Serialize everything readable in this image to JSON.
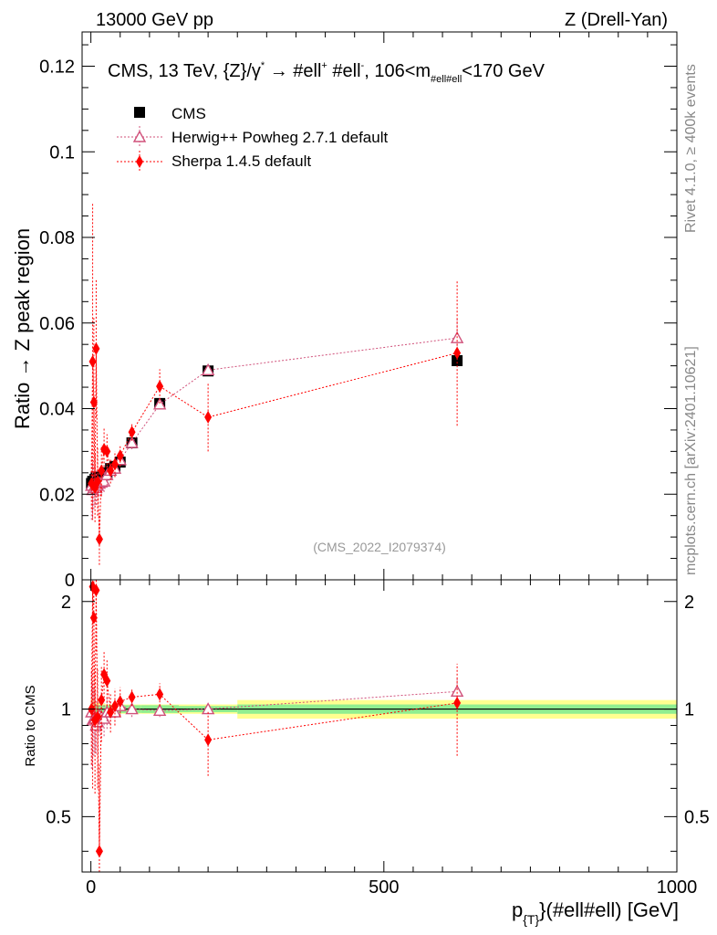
{
  "header": {
    "energy_label": "13000 GeV pp",
    "process_label": "Z (Drell-Yan)"
  },
  "side_labels": {
    "rivet": "Rivet 4.1.0, ≥ 400k events",
    "mcplots": "mcplots.cern.ch [arXiv:2401.10621]"
  },
  "main_panel": {
    "title": "CMS, 13 TeV, {Z}/γ* → #ell⁺ #ell⁻, 106<m#ell#ell<170 GeV",
    "title_parts": {
      "pre": "CMS, 13 TeV, {Z}/γ",
      "star": "*",
      "arrow": " →  #ell",
      "plus": "+",
      "mid": " #ell",
      "minus": "-",
      "post1": ", 106<m",
      "sub": "#ell#ell",
      "post2": "<170 GeV"
    },
    "ylabel": "Ratio → Z peak region",
    "watermark": "(CMS_2022_I2079374)"
  },
  "ratio_panel": {
    "ylabel": "Ratio to CMS"
  },
  "xaxis": {
    "label_main": "p",
    "label_sub": "{T}",
    "label_rest": "}(#ell#ell) [GeV]"
  },
  "colors": {
    "data": "#000000",
    "herwig": "#d0507a",
    "sherpa": "#ff0000",
    "band_inner": "#90ee90",
    "band_outer": "#ffff90",
    "side_text": "#888888"
  },
  "chart_data": {
    "type": "scatter",
    "xlim": [
      -15,
      1000
    ],
    "main_ylim": [
      0,
      0.128
    ],
    "ratio_ylim": [
      0.35,
      2.3
    ],
    "xticks": [
      0,
      500,
      1000
    ],
    "main_yticks": [
      0,
      0.02,
      0.04,
      0.06,
      0.08,
      0.1,
      0.12
    ],
    "main_ytick_labels": [
      "0",
      "0.02",
      "0.04",
      "0.06",
      "0.08",
      "0.1",
      "0.12"
    ],
    "ratio_yticks": [
      0.5,
      1,
      2
    ],
    "ratio_ytick_labels": [
      "0.5",
      "1",
      "2"
    ],
    "legend": [
      "CMS",
      "Herwig++ Powheg 2.7.1 default",
      "Sherpa 1.4.5 default"
    ],
    "band_edges": [
      0,
      2,
      4,
      6,
      8,
      10,
      13,
      16,
      20,
      25,
      30,
      37,
      45,
      55,
      85,
      150,
      250,
      1000
    ],
    "band_inner_half": [
      0.025,
      0.025,
      0.025,
      0.025,
      0.025,
      0.025,
      0.025,
      0.025,
      0.025,
      0.025,
      0.025,
      0.025,
      0.025,
      0.025,
      0.025,
      0.02,
      0.03
    ],
    "band_outer_half": [
      0.08,
      0.06,
      0.05,
      0.05,
      0.04,
      0.04,
      0.04,
      0.035,
      0.035,
      0.03,
      0.03,
      0.03,
      0.03,
      0.03,
      0.03,
      0.03,
      0.06
    ],
    "series": [
      {
        "name": "CMS",
        "marker": "square",
        "x": [
          1,
          3,
          5,
          7,
          9,
          11.5,
          14.5,
          18,
          22.5,
          27.5,
          33.5,
          41,
          50,
          70,
          117.5,
          200,
          625
        ],
        "y": [
          0.0225,
          0.023,
          0.023,
          0.0235,
          0.024,
          0.024,
          0.0235,
          0.024,
          0.0245,
          0.025,
          0.026,
          0.0265,
          0.0275,
          0.032,
          0.0412,
          0.0488,
          0.0512
        ],
        "yerr": [
          0.0008,
          0.0008,
          0.0008,
          0.0008,
          0.0008,
          0.0008,
          0.0008,
          0.0008,
          0.0008,
          0.0008,
          0.0008,
          0.0008,
          0.0008,
          0.0008,
          0.0008,
          0.0008,
          0.0012
        ]
      },
      {
        "name": "Herwig++ Powheg 2.7.1 default",
        "marker": "open-triangle",
        "x": [
          1,
          3,
          5,
          7,
          9,
          11.5,
          14.5,
          18,
          22.5,
          27.5,
          33.5,
          41,
          50,
          70,
          117.5,
          200,
          625
        ],
        "y": [
          0.022,
          0.021,
          0.0215,
          0.022,
          0.0215,
          0.022,
          0.0225,
          0.0228,
          0.023,
          0.0245,
          0.0255,
          0.026,
          0.028,
          0.032,
          0.041,
          0.049,
          0.0565
        ],
        "yerr": [
          0.008,
          0.0065,
          0.005,
          0.0045,
          0.004,
          0.0035,
          0.003,
          0.003,
          0.0025,
          0.0025,
          0.0022,
          0.002,
          0.0015,
          0.0015,
          0.0012,
          0.001,
          0.0045
        ],
        "ratio": [
          0.98,
          0.93,
          0.94,
          0.94,
          0.9,
          0.92,
          0.96,
          0.95,
          0.94,
          0.98,
          0.98,
          0.98,
          1.02,
          1.0,
          0.99,
          1.0,
          1.12
        ],
        "ratio_err": [
          0.3,
          0.25,
          0.2,
          0.18,
          0.15,
          0.14,
          0.12,
          0.12,
          0.1,
          0.1,
          0.08,
          0.08,
          0.06,
          0.05,
          0.04,
          0.03,
          0.1
        ]
      },
      {
        "name": "Sherpa 1.4.5 default",
        "marker": "diamond",
        "x": [
          1,
          3,
          5,
          7,
          9,
          11.5,
          14.5,
          18,
          22.5,
          27.5,
          33.5,
          41,
          50,
          70,
          117.5,
          200,
          625
        ],
        "y": [
          0.0225,
          0.051,
          0.0415,
          0.0215,
          0.054,
          0.023,
          0.0095,
          0.0255,
          0.0305,
          0.03,
          0.0255,
          0.027,
          0.029,
          0.0345,
          0.0452,
          0.038,
          0.053
        ],
        "yerr": [
          0.006,
          0.037,
          0.02,
          0.008,
          0.016,
          0.008,
          0.006,
          0.006,
          0.005,
          0.004,
          0.003,
          0.003,
          0.0025,
          0.002,
          0.004,
          0.008,
          0.017
        ],
        "ratio": [
          1.0,
          2.2,
          1.8,
          0.93,
          2.15,
          0.95,
          0.4,
          1.06,
          1.25,
          1.2,
          0.98,
          1.02,
          1.05,
          1.08,
          1.1,
          0.82,
          1.04
        ],
        "ratio_err": [
          0.3,
          1.6,
          0.9,
          0.35,
          0.7,
          0.35,
          0.3,
          0.25,
          0.2,
          0.18,
          0.12,
          0.12,
          0.1,
          0.06,
          0.08,
          0.17,
          0.3
        ]
      }
    ]
  }
}
